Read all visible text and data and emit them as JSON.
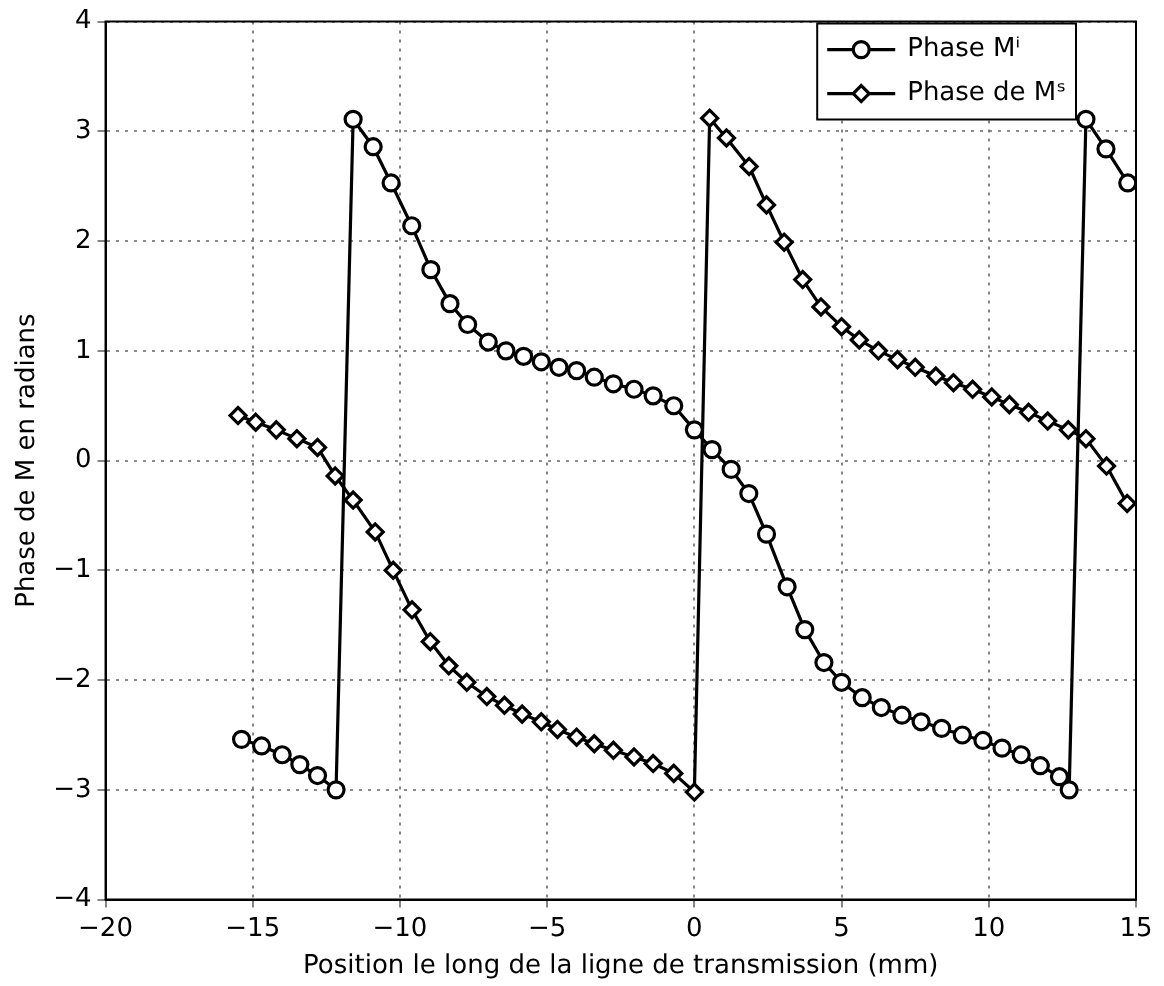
{
  "chart_data": {
    "type": "line",
    "xlabel": "Position le long de la ligne de transmission (mm)",
    "ylabel": "Phase de M en radians",
    "xlim": [
      -20,
      15
    ],
    "xticks": [
      -20,
      -15,
      -10,
      -5,
      0,
      5,
      10,
      15
    ],
    "ylim": [
      -4,
      4
    ],
    "yticks": [
      -4,
      -3,
      -2,
      -1,
      0,
      1,
      2,
      3,
      4
    ],
    "grid": true,
    "legend": "top right",
    "line_style": "solid",
    "series": [
      {
        "name": "Phase Mⁱ",
        "color": "#000000",
        "marker": "circle",
        "x": [
          -15.38,
          -14.7,
          -14.0,
          -13.4,
          -12.8,
          -12.17,
          -11.59,
          -10.91,
          -10.3,
          -9.6,
          -8.95,
          -8.3,
          -7.7,
          -7.0,
          -6.4,
          -5.8,
          -5.2,
          -4.6,
          -4.0,
          -3.4,
          -2.75,
          -2.05,
          -1.4,
          -0.7,
          0.0,
          0.6,
          1.25,
          1.85,
          2.45,
          3.15,
          3.75,
          4.4,
          5.0,
          5.7,
          6.35,
          7.05,
          7.7,
          8.4,
          9.1,
          9.8,
          10.45,
          11.1,
          11.75,
          12.4,
          12.73,
          13.3,
          13.98,
          14.72
        ],
        "values": [
          -2.54,
          -2.6,
          -2.68,
          -2.77,
          -2.87,
          -3.0,
          3.11,
          2.86,
          2.53,
          2.14,
          1.74,
          1.43,
          1.24,
          1.08,
          1.0,
          0.95,
          0.9,
          0.85,
          0.82,
          0.76,
          0.7,
          0.65,
          0.59,
          0.5,
          0.28,
          0.1,
          -0.08,
          -0.3,
          -0.67,
          -1.15,
          -1.54,
          -1.84,
          -2.02,
          -2.16,
          -2.25,
          -2.32,
          -2.38,
          -2.44,
          -2.5,
          -2.55,
          -2.62,
          -2.68,
          -2.78,
          -2.88,
          -3.0,
          3.11,
          2.84,
          2.53
        ]
      },
      {
        "name": "Phase de Mˢ",
        "color": "#000000",
        "marker": "diamond",
        "x": [
          -15.5,
          -14.9,
          -14.2,
          -13.5,
          -12.8,
          -12.2,
          -11.59,
          -10.84,
          -10.23,
          -9.59,
          -8.97,
          -8.34,
          -7.73,
          -7.05,
          -6.45,
          -5.85,
          -5.2,
          -4.65,
          -4.0,
          -3.4,
          -2.75,
          -2.05,
          -1.4,
          -0.7,
          0.0,
          0.52,
          1.09,
          1.86,
          2.45,
          3.05,
          3.68,
          4.3,
          5.0,
          5.6,
          6.25,
          6.9,
          7.5,
          8.2,
          8.8,
          9.45,
          10.1,
          10.7,
          11.35,
          12.0,
          12.7,
          13.3,
          14.0,
          14.7
        ],
        "values": [
          0.41,
          0.35,
          0.28,
          0.2,
          0.12,
          -0.14,
          -0.36,
          -0.65,
          -1.0,
          -1.36,
          -1.65,
          -1.87,
          -2.02,
          -2.15,
          -2.23,
          -2.31,
          -2.38,
          -2.45,
          -2.52,
          -2.58,
          -2.64,
          -2.7,
          -2.76,
          -2.85,
          -3.02,
          3.12,
          2.94,
          2.68,
          2.33,
          1.99,
          1.65,
          1.4,
          1.22,
          1.1,
          1.0,
          0.92,
          0.85,
          0.77,
          0.71,
          0.65,
          0.58,
          0.51,
          0.44,
          0.36,
          0.28,
          0.2,
          -0.05,
          -0.39
        ]
      }
    ]
  }
}
